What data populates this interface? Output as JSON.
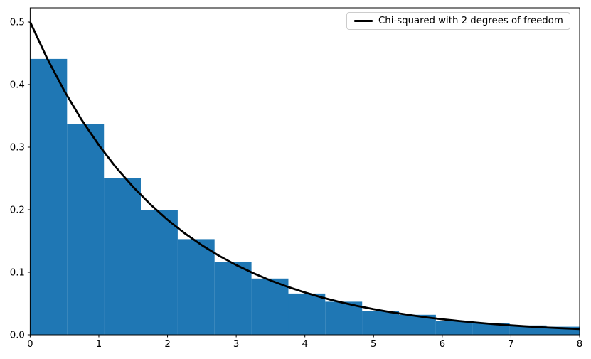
{
  "figure": {
    "background": "#ffffff"
  },
  "chart_data": {
    "type": "bar",
    "subtype": "histogram-with-density-curve",
    "title": "",
    "xlabel": "",
    "ylabel": "",
    "xlim": [
      0,
      8
    ],
    "ylim": [
      0,
      0.5227
    ],
    "grid": false,
    "x_ticks": [
      0,
      1,
      2,
      3,
      4,
      5,
      6,
      7,
      8
    ],
    "x_tick_labels": [
      "0",
      "1",
      "2",
      "3",
      "4",
      "5",
      "6",
      "7",
      "8"
    ],
    "y_ticks": [
      0.0,
      0.1,
      0.2,
      0.3,
      0.4,
      0.5
    ],
    "y_tick_labels": [
      "0.0",
      "0.1",
      "0.2",
      "0.3",
      "0.4",
      "0.5"
    ],
    "bar_color": "#1f77b4",
    "spine_color": "#000000",
    "histogram": {
      "bin_start": 0,
      "bin_width": 0.537,
      "densities": [
        0.441,
        0.337,
        0.25,
        0.2,
        0.153,
        0.116,
        0.09,
        0.066,
        0.053,
        0.038,
        0.032,
        0.022,
        0.019,
        0.015,
        0.013
      ]
    },
    "curve": {
      "label": "Chi-squared with 2 degrees of freedom",
      "color": "#000000",
      "line_width": 2.8,
      "x": [
        0,
        0.25,
        0.5,
        0.75,
        1,
        1.25,
        1.5,
        1.75,
        2,
        2.25,
        2.5,
        2.75,
        3,
        3.25,
        3.5,
        3.75,
        4,
        4.25,
        4.5,
        4.75,
        5,
        5.25,
        5.5,
        5.75,
        6,
        6.25,
        6.5,
        6.75,
        7,
        7.25,
        7.5,
        7.75,
        8
      ],
      "y": [
        0.5,
        0.4413,
        0.3894,
        0.3436,
        0.3033,
        0.2676,
        0.2362,
        0.2085,
        0.1839,
        0.1623,
        0.1433,
        0.1264,
        0.1116,
        0.0985,
        0.0869,
        0.0767,
        0.0677,
        0.0597,
        0.0527,
        0.0465,
        0.041,
        0.0362,
        0.032,
        0.0282,
        0.0249,
        0.022,
        0.0194,
        0.0171,
        0.0151,
        0.0133,
        0.0118,
        0.0104,
        0.0092
      ]
    },
    "legend": {
      "position": "upper right",
      "entries": [
        {
          "label": "Chi-squared with 2 degrees of freedom",
          "color": "#000000"
        }
      ]
    }
  }
}
